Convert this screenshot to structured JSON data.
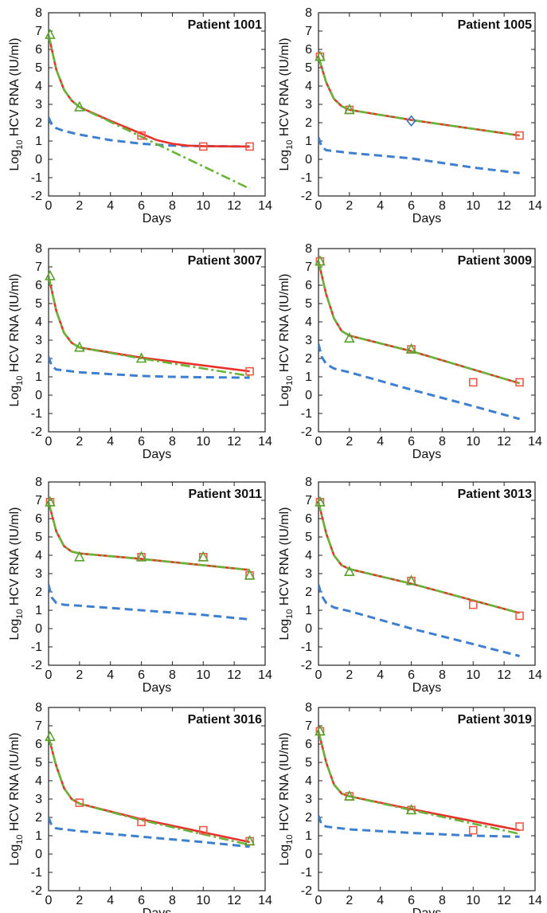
{
  "colors": {
    "blue_dashed": "#3f7fcf",
    "red_solid": "#e8312a",
    "green_dashdot": "#69b43a",
    "red_marker": "#ee5a4a",
    "green_marker": "#5aa02f",
    "blue_marker": "#3a6fc4",
    "axes": "#222222"
  },
  "chart_data": [
    {
      "type": "line",
      "title": "Patient 1001",
      "xlabel": "Days",
      "ylabel_prefix": "Log",
      "ylabel_sub": "10",
      "ylabel_rest": " HCV RNA (IU/ml)",
      "xlim": [
        0,
        14
      ],
      "ylim": [
        -2,
        8
      ],
      "xticks": [
        0,
        2,
        4,
        6,
        8,
        10,
        12,
        14
      ],
      "yticks": [
        -2,
        -1,
        0,
        1,
        2,
        3,
        4,
        5,
        6,
        7,
        8
      ],
      "series": [
        {
          "style": "blue_dashed",
          "x": [
            0,
            0.2,
            0.5,
            1,
            2,
            4,
            6,
            8,
            10,
            13
          ],
          "y": [
            2.3,
            1.9,
            1.7,
            1.55,
            1.35,
            1.05,
            0.85,
            0.75,
            0.72,
            0.7
          ]
        },
        {
          "style": "red_solid",
          "x": [
            0,
            0.5,
            1,
            1.5,
            2,
            4,
            6,
            7,
            8,
            9,
            10,
            13
          ],
          "y": [
            6.8,
            4.9,
            3.8,
            3.2,
            2.85,
            2.1,
            1.4,
            1.05,
            0.85,
            0.75,
            0.72,
            0.7
          ]
        },
        {
          "style": "green_dashdot",
          "x": [
            0,
            0.5,
            1,
            1.5,
            2,
            13
          ],
          "y": [
            6.8,
            4.9,
            3.8,
            3.2,
            2.85,
            -1.6
          ]
        }
      ],
      "markers": [
        {
          "shape": "square",
          "x": [
            6,
            10,
            13
          ],
          "y": [
            1.3,
            0.7,
            0.7
          ]
        },
        {
          "shape": "triangle",
          "x": [
            0.1,
            2
          ],
          "y": [
            6.8,
            2.85
          ]
        }
      ]
    },
    {
      "type": "line",
      "title": "Patient 1005",
      "xlabel": "Days",
      "ylabel_prefix": "Log",
      "ylabel_sub": "10",
      "ylabel_rest": " HCV RNA (IU/ml)",
      "xlim": [
        0,
        14
      ],
      "ylim": [
        -2,
        8
      ],
      "xticks": [
        0,
        2,
        4,
        6,
        8,
        10,
        12,
        14
      ],
      "yticks": [
        -2,
        -1,
        0,
        1,
        2,
        3,
        4,
        5,
        6,
        7,
        8
      ],
      "series": [
        {
          "style": "blue_dashed",
          "x": [
            0,
            0.2,
            0.5,
            1,
            2,
            6,
            10,
            13
          ],
          "y": [
            1.2,
            0.7,
            0.5,
            0.45,
            0.35,
            0.05,
            -0.45,
            -0.75
          ]
        },
        {
          "style": "red_solid",
          "x": [
            0,
            0.5,
            1,
            1.5,
            2,
            6,
            13
          ],
          "y": [
            5.6,
            4.2,
            3.3,
            2.9,
            2.7,
            2.15,
            1.3
          ]
        },
        {
          "style": "green_dashdot",
          "x": [
            0,
            0.5,
            1,
            1.5,
            2,
            6,
            13
          ],
          "y": [
            5.6,
            4.2,
            3.3,
            2.9,
            2.7,
            2.15,
            1.3
          ]
        }
      ],
      "markers": [
        {
          "shape": "square",
          "x": [
            0.1,
            2,
            13
          ],
          "y": [
            5.6,
            2.7,
            1.3
          ]
        },
        {
          "shape": "triangle",
          "x": [
            0.1,
            2
          ],
          "y": [
            5.6,
            2.7
          ]
        },
        {
          "shape": "diamond",
          "x": [
            6
          ],
          "y": [
            2.1
          ]
        }
      ]
    },
    {
      "type": "line",
      "title": "Patient 3007",
      "xlabel": "Days",
      "ylabel_prefix": "Log",
      "ylabel_sub": "10",
      "ylabel_rest": " HCV RNA (IU/ml)",
      "xlim": [
        0,
        14
      ],
      "ylim": [
        -2,
        8
      ],
      "xticks": [
        0,
        2,
        4,
        6,
        8,
        10,
        12,
        14
      ],
      "yticks": [
        -2,
        -1,
        0,
        1,
        2,
        3,
        4,
        5,
        6,
        7,
        8
      ],
      "series": [
        {
          "style": "blue_dashed",
          "x": [
            0,
            0.2,
            0.5,
            1,
            2,
            4,
            6,
            8,
            10,
            13
          ],
          "y": [
            2.1,
            1.6,
            1.4,
            1.35,
            1.25,
            1.15,
            1.05,
            1.0,
            0.98,
            0.95
          ]
        },
        {
          "style": "red_solid",
          "x": [
            0,
            0.5,
            1,
            1.5,
            2,
            6,
            13
          ],
          "y": [
            6.5,
            4.6,
            3.4,
            2.85,
            2.6,
            2.05,
            1.3
          ]
        },
        {
          "style": "green_dashdot",
          "x": [
            0,
            0.5,
            1,
            1.5,
            2,
            6,
            13
          ],
          "y": [
            6.5,
            4.6,
            3.4,
            2.85,
            2.6,
            2.0,
            1.05
          ]
        }
      ],
      "markers": [
        {
          "shape": "square",
          "x": [
            13
          ],
          "y": [
            1.3
          ]
        },
        {
          "shape": "triangle",
          "x": [
            0.1,
            2,
            6
          ],
          "y": [
            6.5,
            2.6,
            2.0
          ]
        }
      ]
    },
    {
      "type": "line",
      "title": "Patient 3009",
      "xlabel": "Days",
      "ylabel_prefix": "Log",
      "ylabel_sub": "10",
      "ylabel_rest": " HCV RNA (IU/ml)",
      "xlim": [
        0,
        14
      ],
      "ylim": [
        -2,
        8
      ],
      "xticks": [
        0,
        2,
        4,
        6,
        8,
        10,
        12,
        14
      ],
      "yticks": [
        -2,
        -1,
        0,
        1,
        2,
        3,
        4,
        5,
        6,
        7,
        8
      ],
      "series": [
        {
          "style": "blue_dashed",
          "x": [
            0,
            0.2,
            0.5,
            1,
            2,
            6,
            10,
            13
          ],
          "y": [
            2.8,
            2.1,
            1.7,
            1.45,
            1.25,
            0.3,
            -0.6,
            -1.3
          ]
        },
        {
          "style": "red_solid",
          "x": [
            0,
            0.5,
            1,
            1.5,
            2,
            6,
            13
          ],
          "y": [
            7.3,
            5.5,
            4.2,
            3.5,
            3.25,
            2.4,
            0.65
          ]
        },
        {
          "style": "green_dashdot",
          "x": [
            0,
            0.5,
            1,
            1.5,
            2,
            6,
            13
          ],
          "y": [
            7.3,
            5.5,
            4.2,
            3.5,
            3.25,
            2.4,
            0.65
          ]
        }
      ],
      "markers": [
        {
          "shape": "square",
          "x": [
            0.1,
            6,
            10,
            13
          ],
          "y": [
            7.3,
            2.5,
            0.7,
            0.7
          ]
        },
        {
          "shape": "triangle",
          "x": [
            0.1,
            2,
            6
          ],
          "y": [
            7.3,
            3.1,
            2.5
          ]
        }
      ]
    },
    {
      "type": "line",
      "title": "Patient 3011",
      "xlabel": "Days",
      "ylabel_prefix": "Log",
      "ylabel_sub": "10",
      "ylabel_rest": " HCV RNA (IU/ml)",
      "xlim": [
        0,
        14
      ],
      "ylim": [
        -2,
        8
      ],
      "xticks": [
        0,
        2,
        4,
        6,
        8,
        10,
        12,
        14
      ],
      "yticks": [
        -2,
        -1,
        0,
        1,
        2,
        3,
        4,
        5,
        6,
        7,
        8
      ],
      "series": [
        {
          "style": "blue_dashed",
          "x": [
            0,
            0.2,
            0.5,
            1,
            2,
            6,
            10,
            13
          ],
          "y": [
            2.4,
            1.7,
            1.4,
            1.3,
            1.25,
            1.0,
            0.75,
            0.5
          ]
        },
        {
          "style": "red_solid",
          "x": [
            0,
            0.5,
            1,
            1.5,
            2,
            6,
            13
          ],
          "y": [
            6.9,
            5.3,
            4.5,
            4.2,
            4.1,
            3.8,
            3.2
          ]
        },
        {
          "style": "green_dashdot",
          "x": [
            0,
            0.5,
            1,
            1.5,
            2,
            6,
            13
          ],
          "y": [
            6.9,
            5.3,
            4.5,
            4.2,
            4.1,
            3.8,
            3.2
          ]
        }
      ],
      "markers": [
        {
          "shape": "square",
          "x": [
            0.1,
            6,
            10,
            13
          ],
          "y": [
            6.9,
            3.9,
            3.9,
            2.9
          ]
        },
        {
          "shape": "triangle",
          "x": [
            0.1,
            2,
            6,
            10,
            13
          ],
          "y": [
            6.9,
            3.9,
            3.9,
            3.9,
            2.9
          ]
        }
      ]
    },
    {
      "type": "line",
      "title": "Patient 3013",
      "xlabel": "Days",
      "ylabel_prefix": "Log",
      "ylabel_sub": "10",
      "ylabel_rest": " HCV RNA (IU/ml)",
      "xlim": [
        0,
        14
      ],
      "ylim": [
        -2,
        8
      ],
      "xticks": [
        0,
        2,
        4,
        6,
        8,
        10,
        12,
        14
      ],
      "yticks": [
        -2,
        -1,
        0,
        1,
        2,
        3,
        4,
        5,
        6,
        7,
        8
      ],
      "series": [
        {
          "style": "blue_dashed",
          "x": [
            0,
            0.2,
            0.5,
            1,
            2,
            6,
            10,
            13
          ],
          "y": [
            2.4,
            1.8,
            1.4,
            1.15,
            0.95,
            0.0,
            -0.85,
            -1.5
          ]
        },
        {
          "style": "red_solid",
          "x": [
            0,
            0.5,
            1,
            1.5,
            2,
            6,
            13
          ],
          "y": [
            6.9,
            5.2,
            4.0,
            3.45,
            3.25,
            2.45,
            0.85
          ]
        },
        {
          "style": "green_dashdot",
          "x": [
            0,
            0.5,
            1,
            1.5,
            2,
            6,
            13
          ],
          "y": [
            6.9,
            5.2,
            4.0,
            3.45,
            3.25,
            2.45,
            0.85
          ]
        }
      ],
      "markers": [
        {
          "shape": "square",
          "x": [
            0.1,
            6,
            10,
            13
          ],
          "y": [
            6.9,
            2.6,
            1.3,
            0.7
          ]
        },
        {
          "shape": "triangle",
          "x": [
            0.1,
            2,
            6
          ],
          "y": [
            6.9,
            3.1,
            2.6
          ]
        }
      ]
    },
    {
      "type": "line",
      "title": "Patient 3016",
      "xlabel": "Days",
      "ylabel_prefix": "Log",
      "ylabel_sub": "10",
      "ylabel_rest": " HCV RNA (IU/ml)",
      "xlim": [
        0,
        14
      ],
      "ylim": [
        -2,
        8
      ],
      "xticks": [
        0,
        2,
        4,
        6,
        8,
        10,
        12,
        14
      ],
      "yticks": [
        -2,
        -1,
        0,
        1,
        2,
        3,
        4,
        5,
        6,
        7,
        8
      ],
      "series": [
        {
          "style": "blue_dashed",
          "x": [
            0,
            0.2,
            0.5,
            1,
            2,
            6,
            10,
            13
          ],
          "y": [
            2.0,
            1.55,
            1.4,
            1.35,
            1.25,
            0.95,
            0.65,
            0.4
          ]
        },
        {
          "style": "red_solid",
          "x": [
            0,
            0.5,
            1,
            1.5,
            2,
            6,
            13
          ],
          "y": [
            6.4,
            4.8,
            3.6,
            3.0,
            2.75,
            1.9,
            0.65
          ]
        },
        {
          "style": "green_dashdot",
          "x": [
            0,
            0.5,
            1,
            1.5,
            2,
            6,
            13
          ],
          "y": [
            6.4,
            4.8,
            3.6,
            3.0,
            2.75,
            1.85,
            0.5
          ]
        }
      ],
      "markers": [
        {
          "shape": "square",
          "x": [
            2,
            6,
            10,
            13
          ],
          "y": [
            2.8,
            1.75,
            1.3,
            0.7
          ]
        },
        {
          "shape": "triangle",
          "x": [
            0.1,
            13
          ],
          "y": [
            6.4,
            0.7
          ]
        }
      ]
    },
    {
      "type": "line",
      "title": "Patient 3019",
      "xlabel": "Days",
      "ylabel_prefix": "Log",
      "ylabel_sub": "10",
      "ylabel_rest": " HCV RNA (IU/ml)",
      "xlim": [
        0,
        14
      ],
      "ylim": [
        -2,
        8
      ],
      "xticks": [
        0,
        2,
        4,
        6,
        8,
        10,
        12,
        14
      ],
      "yticks": [
        -2,
        -1,
        0,
        1,
        2,
        3,
        4,
        5,
        6,
        7,
        8
      ],
      "series": [
        {
          "style": "blue_dashed",
          "x": [
            0,
            0.2,
            0.5,
            1,
            2,
            6,
            10,
            13
          ],
          "y": [
            2.1,
            1.6,
            1.5,
            1.45,
            1.35,
            1.15,
            1.0,
            0.95
          ]
        },
        {
          "style": "red_solid",
          "x": [
            0,
            0.5,
            1,
            1.5,
            2,
            6,
            13
          ],
          "y": [
            6.7,
            5.0,
            3.8,
            3.3,
            3.15,
            2.45,
            1.3
          ]
        },
        {
          "style": "green_dashdot",
          "x": [
            0,
            0.5,
            1,
            1.5,
            2,
            6,
            13
          ],
          "y": [
            6.7,
            5.0,
            3.8,
            3.3,
            3.15,
            2.4,
            1.1
          ]
        }
      ],
      "markers": [
        {
          "shape": "square",
          "x": [
            0.1,
            2,
            6,
            10,
            13
          ],
          "y": [
            6.7,
            3.15,
            2.4,
            1.3,
            1.5
          ]
        },
        {
          "shape": "triangle",
          "x": [
            0.1,
            2,
            6
          ],
          "y": [
            6.7,
            3.15,
            2.4
          ]
        }
      ]
    }
  ]
}
